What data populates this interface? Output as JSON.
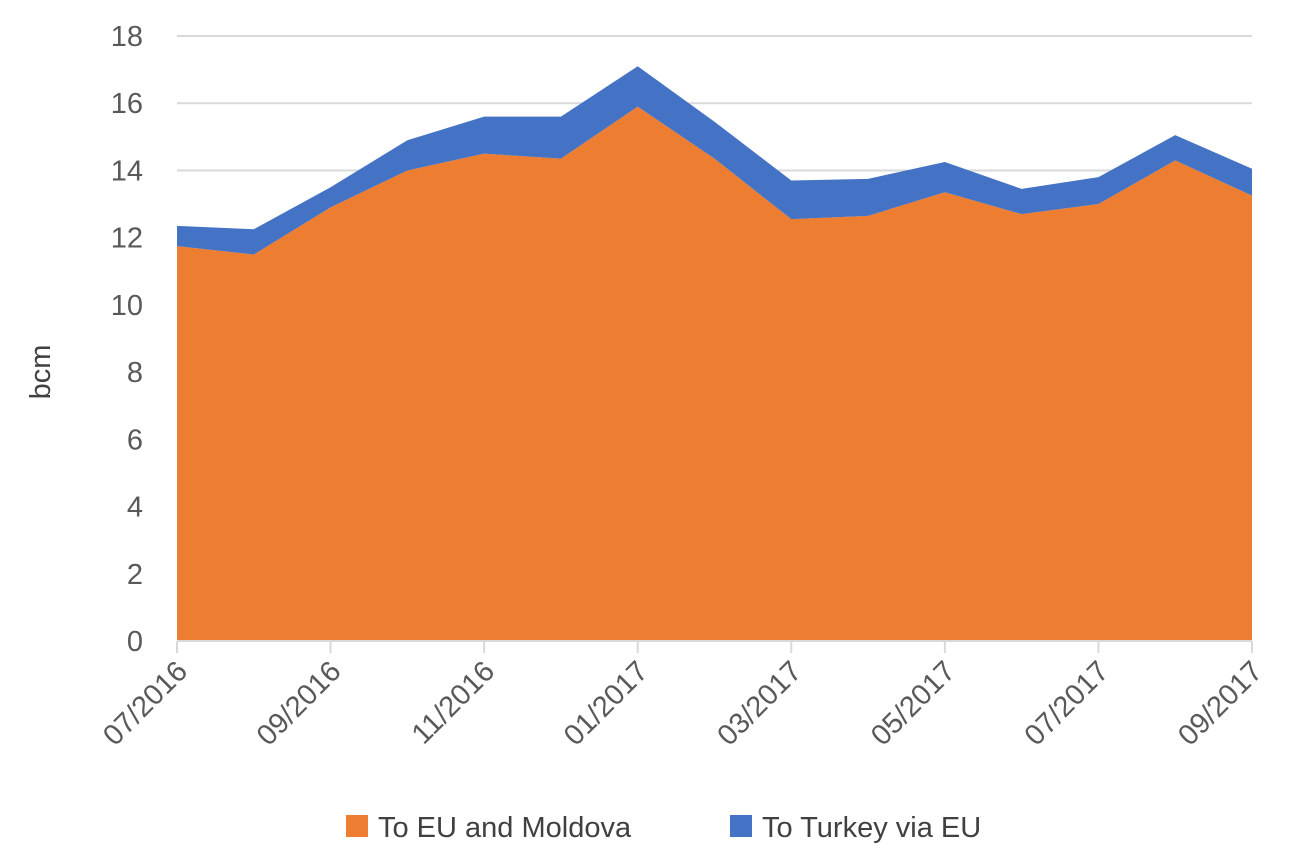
{
  "chart_data": {
    "type": "area",
    "stacked": true,
    "title": "",
    "xlabel": "",
    "ylabel": "bcm",
    "ylim": [
      0,
      18
    ],
    "y_ticks": [
      "0",
      "2",
      "4",
      "6",
      "8",
      "10",
      "12",
      "14",
      "16",
      "18"
    ],
    "x": [
      "07/2016",
      "08/2016",
      "09/2016",
      "10/2016",
      "11/2016",
      "12/2016",
      "01/2017",
      "02/2017",
      "03/2017",
      "04/2017",
      "05/2017",
      "06/2017",
      "07/2017",
      "08/2017",
      "09/2017"
    ],
    "x_tick_labels": [
      "07/2016",
      "09/2016",
      "11/2016",
      "01/2017",
      "03/2017",
      "05/2017",
      "07/2017",
      "09/2017"
    ],
    "grid": "horizontal",
    "legend_position": "bottom",
    "series": [
      {
        "name": "To EU and Moldova",
        "color": "#ed7d31",
        "values": [
          11.75,
          11.5,
          12.9,
          14.0,
          14.5,
          14.35,
          15.9,
          14.35,
          12.55,
          12.65,
          13.35,
          12.7,
          13.0,
          14.3,
          13.25
        ]
      },
      {
        "name": "To Turkey via EU",
        "color": "#4472c4",
        "values": [
          0.6,
          0.75,
          0.6,
          0.9,
          1.1,
          1.25,
          1.2,
          1.1,
          1.15,
          1.1,
          0.9,
          0.75,
          0.8,
          0.75,
          0.8
        ]
      }
    ]
  }
}
